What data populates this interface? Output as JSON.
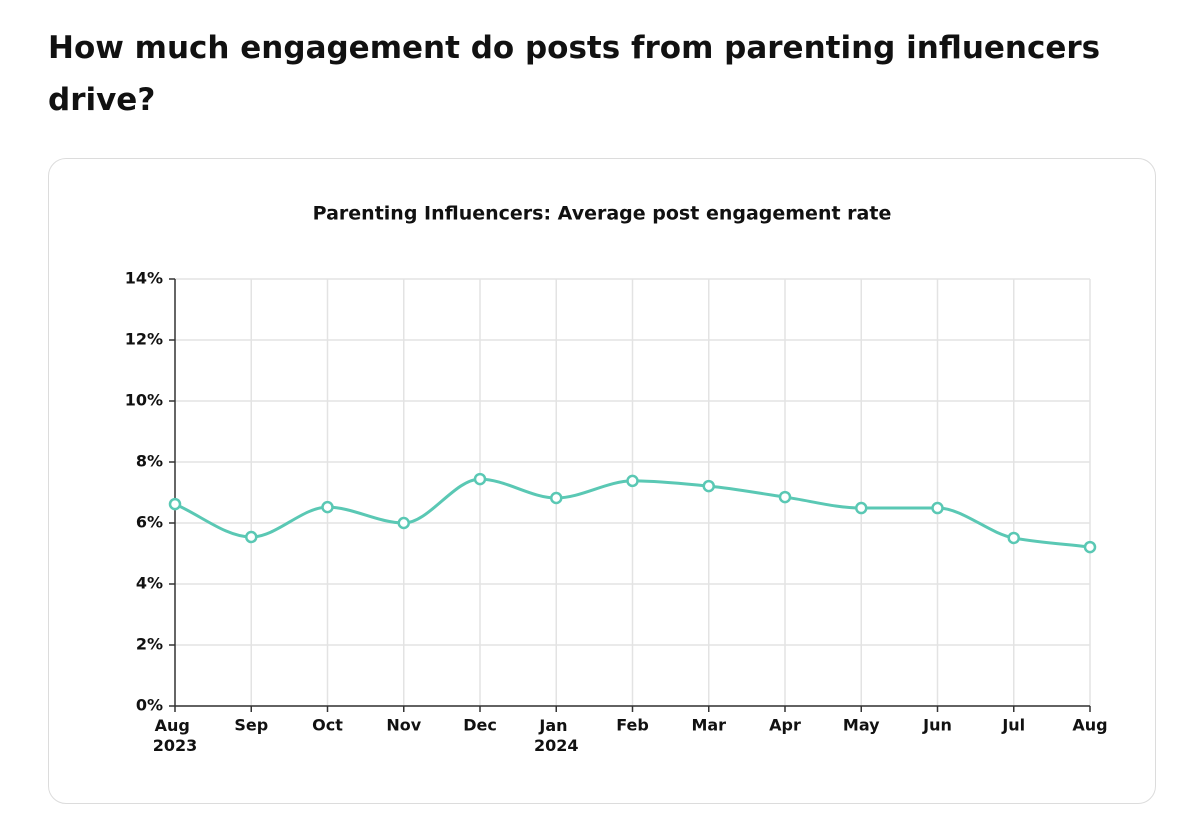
{
  "heading": "How much engagement do posts from parenting influencers drive?",
  "chart_data": {
    "type": "line",
    "title": "Parenting Influencers: Average post engagement rate",
    "categories": [
      "Aug 2023",
      "Sep",
      "Oct",
      "Nov",
      "Dec",
      "Jan 2024",
      "Feb",
      "Mar",
      "Apr",
      "May",
      "Jun",
      "Jul",
      "Aug"
    ],
    "values": [
      6.62,
      5.54,
      6.52,
      6.0,
      7.44,
      6.82,
      7.38,
      7.21,
      6.85,
      6.49,
      6.49,
      5.51,
      5.21
    ],
    "color": "#5ac8b4",
    "ylim": [
      0,
      14
    ],
    "yticks": [
      {
        "value": 0,
        "label": "0%"
      },
      {
        "value": 2,
        "label": "2%"
      },
      {
        "value": 4,
        "label": "4%"
      },
      {
        "value": 6,
        "label": "6%"
      },
      {
        "value": 8,
        "label": "8%"
      },
      {
        "value": 10,
        "label": "10%"
      },
      {
        "value": 12,
        "label": "12%"
      },
      {
        "value": 14,
        "label": "14%"
      }
    ],
    "grid": true
  }
}
